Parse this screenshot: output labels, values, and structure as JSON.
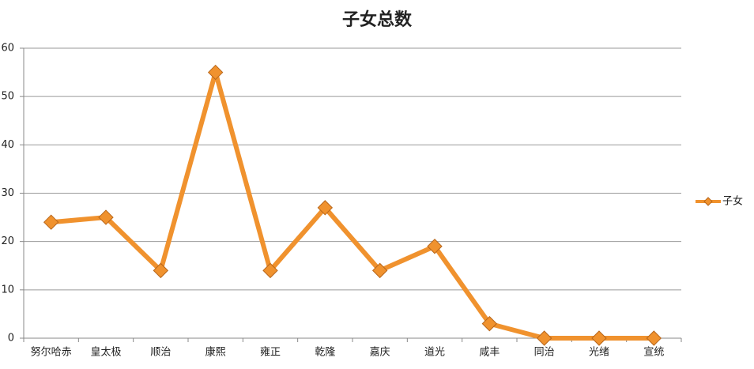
{
  "chart_data": {
    "type": "line",
    "title": "子女总数",
    "categories": [
      "努尔哈赤",
      "皇太极",
      "顺治",
      "康熙",
      "雍正",
      "乾隆",
      "嘉庆",
      "道光",
      "咸丰",
      "同治",
      "光绪",
      "宣统"
    ],
    "series": [
      {
        "name": "子女",
        "color": "#f0922e",
        "values": [
          24,
          25,
          14,
          55,
          14,
          27,
          14,
          19,
          3,
          0,
          0,
          0
        ]
      }
    ],
    "ylim": [
      0,
      60
    ],
    "yticks": [
      0,
      10,
      20,
      30,
      40,
      50,
      60
    ],
    "grid": true,
    "legend": "right"
  }
}
